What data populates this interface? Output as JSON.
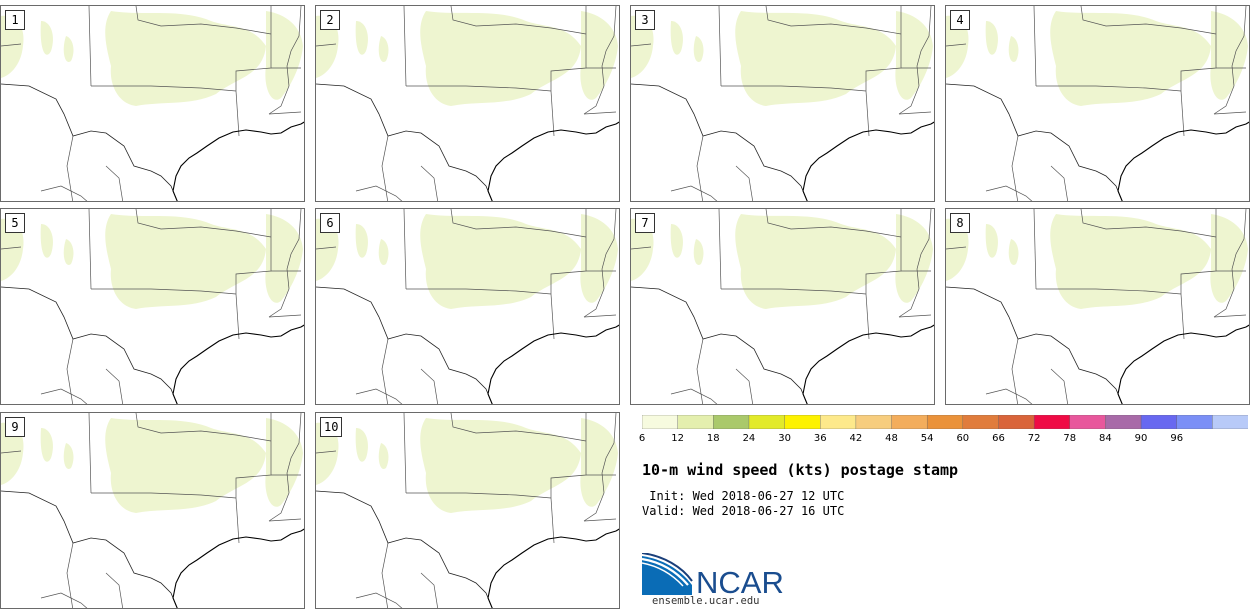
{
  "panels": [
    "1",
    "2",
    "3",
    "4",
    "5",
    "6",
    "7",
    "8",
    "9",
    "10"
  ],
  "colorbar": {
    "ticks": [
      "6",
      "12",
      "18",
      "24",
      "30",
      "36",
      "42",
      "48",
      "54",
      "60",
      "66",
      "72",
      "78",
      "84",
      "90",
      "96"
    ],
    "colors": [
      "#f7fbdf",
      "#e4efae",
      "#aac96b",
      "#e2ea2a",
      "#fdf200",
      "#fde98b",
      "#f7cd7e",
      "#f3ad5c",
      "#ea923a",
      "#e07c3c",
      "#d9643a",
      "#ef0b45",
      "#e8579c",
      "#a86aa8",
      "#6868f0",
      "#7b8ff6",
      "#b8caf8"
    ]
  },
  "title": "10-m wind speed (kts) postage stamp",
  "init_line": " Init: Wed 2018-06-27 12 UTC",
  "valid_line": "Valid: Wed 2018-06-27 16 UTC",
  "logo_text": "NCAR",
  "url": "ensemble.ucar.edu",
  "colors": {
    "wind_shade": "#eef5d0",
    "border": "#555555",
    "coast": "#000000",
    "frame": "#6a6a6a"
  }
}
